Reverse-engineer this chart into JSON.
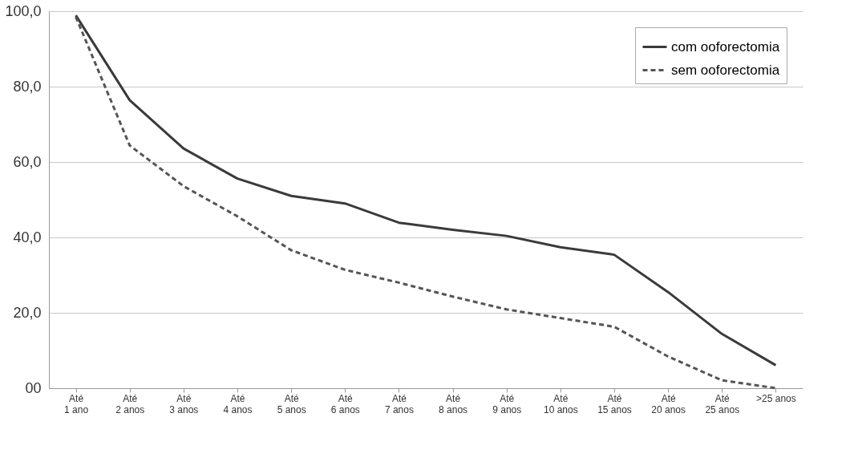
{
  "chart_data": {
    "type": "line",
    "categories": [
      "Até\n1 ano",
      "Até\n2 anos",
      "Até\n3 anos",
      "Até\n4 anos",
      "Até\n5 anos",
      "Até\n6 anos",
      "Até\n7 anos",
      "Até\n8 anos",
      "Até\n9 anos",
      "Até\n10 anos",
      "Até\n15 anos",
      "Até\n20 anos",
      "Até\n25 anos",
      ">25 anos"
    ],
    "series": [
      {
        "name": "com ooforectomia",
        "color": "#3a3a3a",
        "line_style": "solid",
        "values": [
          98.9,
          76.4,
          63.6,
          55.6,
          51.0,
          49.0,
          43.9,
          42.0,
          40.4,
          37.4,
          35.4,
          25.5,
          14.4,
          6.1
        ]
      },
      {
        "name": "sem ooforectomia",
        "color": "#555555",
        "line_style": "dashed",
        "values": [
          98.5,
          64.4,
          53.6,
          45.6,
          36.6,
          31.4,
          28.0,
          24.3,
          20.9,
          18.6,
          16.3,
          8.4,
          2.1,
          0
        ]
      }
    ],
    "ylim": [
      0,
      100
    ],
    "yticks": [
      {
        "value": 0,
        "label": "00"
      },
      {
        "value": 20,
        "label": "20,0"
      },
      {
        "value": 40,
        "label": "40,0"
      },
      {
        "value": 60,
        "label": "60,0"
      },
      {
        "value": 80,
        "label": "80,0"
      },
      {
        "value": 100,
        "label": "100,0"
      }
    ],
    "grid": "y",
    "legend": "top right",
    "marker": "none"
  }
}
